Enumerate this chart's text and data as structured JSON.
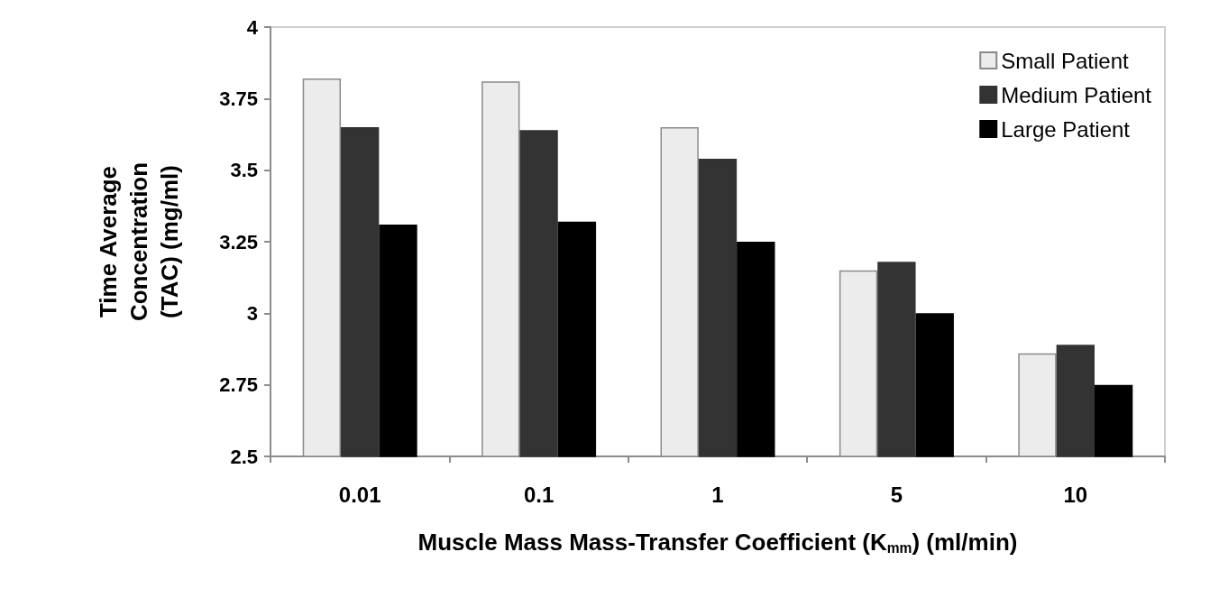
{
  "chart_data": {
    "type": "bar",
    "xlabel": "Muscle Mass Mass-Transfer Coefficient (K$_{mm}$) (ml/min)",
    "ylabel": "Time Average\nConcentration\n(TAC) (mg/ml)",
    "categories": [
      "0.01",
      "0.1",
      "1",
      "5",
      "10"
    ],
    "series": [
      {
        "name": "Small Patient",
        "color": "#ececec",
        "values": [
          3.82,
          3.81,
          3.65,
          3.15,
          2.86
        ]
      },
      {
        "name": "Medium Patient",
        "color": "#333333",
        "values": [
          3.65,
          3.64,
          3.54,
          3.18,
          2.89
        ]
      },
      {
        "name": "Large Patient",
        "color": "#000000",
        "values": [
          3.31,
          3.32,
          3.25,
          3.0,
          2.75
        ]
      }
    ],
    "ylim": [
      2.5,
      4
    ],
    "yticks": [
      2.5,
      2.75,
      3,
      3.25,
      3.5,
      3.75,
      4
    ],
    "grid": false,
    "legend": "top right"
  }
}
